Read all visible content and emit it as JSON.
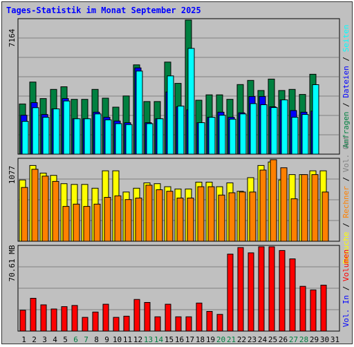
{
  "title": "Tages-Statistik im Monat September 2025",
  "colors": {
    "background": "#c0c0c0",
    "hits": "#008040",
    "files": "#0000ff",
    "pages": "#00ffff",
    "visits": "#ffff00",
    "sites": "#ff8000",
    "kbytes": "#ff0000",
    "weekday_label": "#000000",
    "weekend_label": "#008040",
    "title": "#0000ff"
  },
  "chart_data": [
    {
      "type": "bar",
      "panel": "hits-files-pages",
      "ymax_label": "7164",
      "ylim": [
        0,
        7164
      ],
      "grid": true,
      "x": [
        1,
        2,
        3,
        4,
        5,
        6,
        7,
        8,
        9,
        10,
        11,
        12,
        13,
        14,
        15,
        16,
        17,
        18,
        19,
        20,
        21,
        22,
        23,
        24,
        25,
        26,
        27,
        28,
        29,
        30,
        31
      ],
      "series": [
        {
          "name": "Anfragen",
          "color": "#008040",
          "values": [
            2680,
            3850,
            2970,
            3460,
            3600,
            2930,
            2930,
            3460,
            2990,
            2510,
            3110,
            4770,
            2810,
            2810,
            4920,
            3780,
            7164,
            2880,
            3170,
            3170,
            2930,
            3720,
            3940,
            3400,
            4010,
            3400,
            3460,
            3190,
            4270,
            0,
            0
          ]
        },
        {
          "name": "Dateien",
          "color": "#0000ff",
          "values": [
            2080,
            2750,
            2120,
            2420,
            2970,
            1890,
            1890,
            2240,
            1970,
            1770,
            1680,
            4610,
            1680,
            1890,
            3320,
            2530,
            2370,
            1680,
            1970,
            2240,
            1970,
            2210,
            3080,
            3080,
            2530,
            2900,
            2330,
            2240,
            2300,
            0,
            0
          ]
        },
        {
          "name": "Seiten",
          "color": "#00ffff",
          "values": [
            1750,
            2480,
            1970,
            2420,
            2840,
            1890,
            1890,
            2150,
            1830,
            1630,
            1580,
            4440,
            1630,
            1890,
            4180,
            2570,
            5650,
            1680,
            1970,
            2080,
            1870,
            2150,
            2700,
            2640,
            2490,
            2900,
            1970,
            2120,
            3710,
            0,
            0
          ]
        }
      ]
    },
    {
      "type": "bar",
      "panel": "visits-sites",
      "ymax_label": "1077",
      "ylim": [
        0,
        1077
      ],
      "grid": true,
      "x": [
        1,
        2,
        3,
        4,
        5,
        6,
        7,
        8,
        9,
        10,
        11,
        12,
        13,
        14,
        15,
        16,
        17,
        18,
        19,
        20,
        21,
        22,
        23,
        24,
        25,
        26,
        27,
        28,
        29,
        30,
        31
      ],
      "series": [
        {
          "name": "Besuche",
          "color": "#ffff00",
          "values": [
            810,
            1000,
            900,
            870,
            760,
            750,
            750,
            700,
            930,
            930,
            650,
            700,
            770,
            760,
            720,
            690,
            690,
            780,
            780,
            720,
            770,
            660,
            840,
            1000,
            1047,
            810,
            880,
            880,
            930,
            930,
            0
          ]
        },
        {
          "name": "Rechner",
          "color": "#ff8000",
          "values": [
            710,
            950,
            860,
            790,
            460,
            490,
            460,
            490,
            580,
            600,
            550,
            570,
            740,
            680,
            660,
            570,
            570,
            720,
            720,
            610,
            640,
            650,
            650,
            940,
            1077,
            970,
            560,
            880,
            880,
            650,
            0
          ]
        }
      ]
    },
    {
      "type": "bar",
      "panel": "kbytes",
      "ymax_label": "70.61 MB",
      "ylim": [
        0,
        70.61
      ],
      "grid": true,
      "x": [
        1,
        2,
        3,
        4,
        5,
        6,
        7,
        8,
        9,
        10,
        11,
        12,
        13,
        14,
        15,
        16,
        17,
        18,
        19,
        20,
        21,
        22,
        23,
        24,
        25,
        26,
        27,
        28,
        29,
        30,
        31
      ],
      "series": [
        {
          "name": "Volumen",
          "color": "#ff0000",
          "values": [
            17.5,
            27.5,
            22.0,
            18.5,
            20.5,
            21.5,
            11.5,
            16.0,
            22.5,
            11.5,
            12.5,
            26.5,
            24.0,
            12.0,
            22.5,
            12.0,
            12.0,
            23.5,
            16.5,
            14.0,
            64.5,
            70.0,
            65.5,
            70.61,
            70.61,
            67.5,
            60.5,
            37.5,
            34.5,
            38.5,
            0
          ]
        }
      ]
    }
  ],
  "right_labels": {
    "top": [
      {
        "text": "Anfragen",
        "color": "#008040"
      },
      {
        "text": "Dateien",
        "color": "#0000ff"
      },
      {
        "text": "Seiten",
        "color": "#00ffff"
      }
    ],
    "middle": [
      {
        "text": "Besuche",
        "color": "#ffff00"
      },
      {
        "text": "Rechner",
        "color": "#ff8000"
      },
      {
        "text": "Vol. Out",
        "color": "#808080"
      }
    ],
    "bottom": [
      {
        "text": "Vol. In",
        "color": "#0000ff"
      },
      {
        "text": "Volumen",
        "color": "#ff0000"
      }
    ],
    "separator": " / "
  },
  "x_labels": [
    {
      "text": "1",
      "weekend": false
    },
    {
      "text": "2",
      "weekend": false
    },
    {
      "text": "3",
      "weekend": false
    },
    {
      "text": "4",
      "weekend": false
    },
    {
      "text": "5",
      "weekend": false
    },
    {
      "text": "6",
      "weekend": true
    },
    {
      "text": "7",
      "weekend": true
    },
    {
      "text": "8",
      "weekend": false
    },
    {
      "text": "9",
      "weekend": false
    },
    {
      "text": "10",
      "weekend": false
    },
    {
      "text": "11",
      "weekend": false
    },
    {
      "text": "12",
      "weekend": false
    },
    {
      "text": "13",
      "weekend": true
    },
    {
      "text": "14",
      "weekend": true
    },
    {
      "text": "15",
      "weekend": false
    },
    {
      "text": "16",
      "weekend": false
    },
    {
      "text": "17",
      "weekend": false
    },
    {
      "text": "18",
      "weekend": false
    },
    {
      "text": "19",
      "weekend": false
    },
    {
      "text": "20",
      "weekend": true
    },
    {
      "text": "21",
      "weekend": true
    },
    {
      "text": "22",
      "weekend": false
    },
    {
      "text": "23",
      "weekend": false
    },
    {
      "text": "24",
      "weekend": false
    },
    {
      "text": "25",
      "weekend": false
    },
    {
      "text": "26",
      "weekend": false
    },
    {
      "text": "27",
      "weekend": true
    },
    {
      "text": "28",
      "weekend": true
    },
    {
      "text": "29",
      "weekend": false
    },
    {
      "text": "30",
      "weekend": false
    },
    {
      "text": "31",
      "weekend": false
    }
  ]
}
